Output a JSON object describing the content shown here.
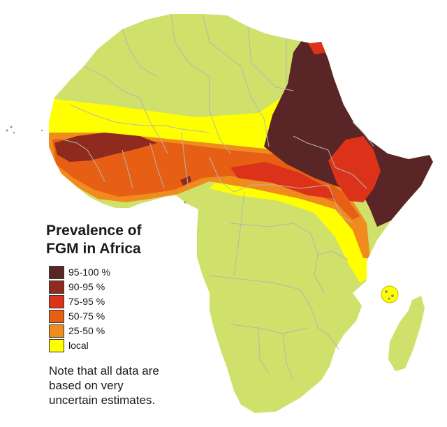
{
  "map": {
    "colors": {
      "land": "#cfe06b",
      "borders": "#b5b8b0",
      "c95_100": "#5a2526",
      "c90_95": "#8e2b1e",
      "c75_95": "#dc3219",
      "c50_75": "#e65f14",
      "c25_50": "#f08c1e",
      "local": "#ffff00"
    }
  },
  "legend": {
    "title_line1": "Prevalence of",
    "title_line2": "FGM in Africa",
    "items": [
      {
        "label": "95-100 %",
        "color": "#5a2526"
      },
      {
        "label": "90-95  %",
        "color": "#8e2b1e"
      },
      {
        "label": "75-95  %",
        "color": "#dc3219"
      },
      {
        "label": "50-75  %",
        "color": "#e65f14"
      },
      {
        "label": "25-50  %",
        "color": "#f08c1e"
      },
      {
        "label": "local",
        "color": "#ffff00"
      }
    ],
    "note_line1": "Note that all data are",
    "note_line2": "based on very",
    "note_line3": "uncertain estimates."
  }
}
